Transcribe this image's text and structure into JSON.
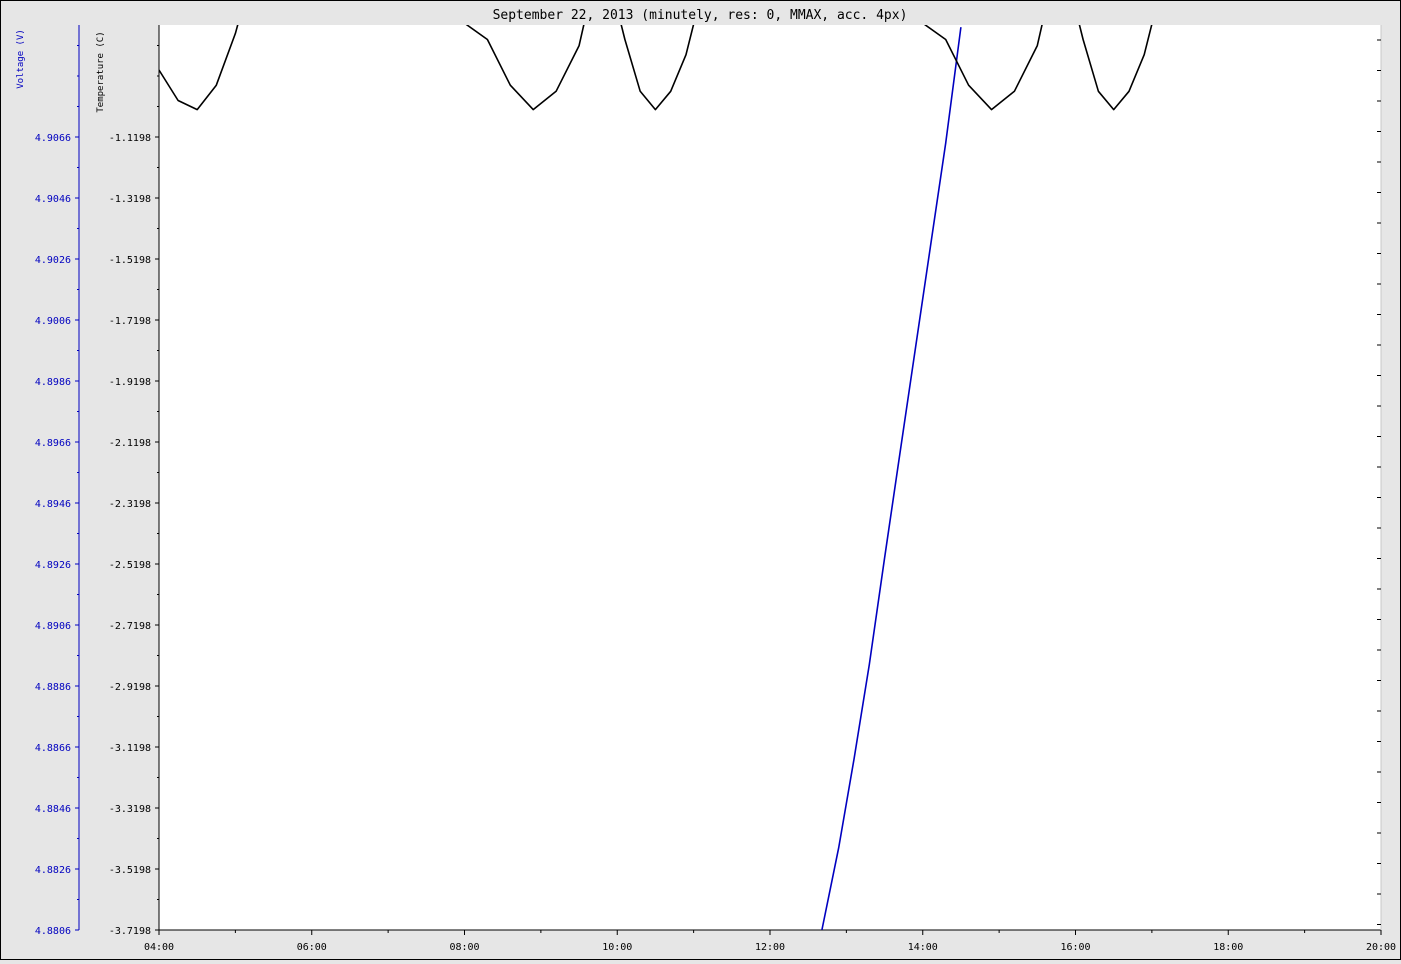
{
  "chart_data": {
    "type": "line",
    "title": "September 22, 2013 (minutely, res: 0, MMAX, acc. 4px)",
    "x_ticks": [
      "04:00",
      "06:00",
      "08:00",
      "10:00",
      "12:00",
      "14:00",
      "16:00",
      "18:00",
      "20:00"
    ],
    "xlim": [
      4,
      20
    ],
    "axes": {
      "voltage": {
        "label": "Voltage (V)",
        "color": "#0000c0",
        "ylim": [
          4.8806,
          4.9066
        ],
        "ticks": [
          "4.9066",
          "4.9046",
          "4.9026",
          "4.9006",
          "4.8986",
          "4.8966",
          "4.8946",
          "4.8926",
          "4.8906",
          "4.8886",
          "4.8866",
          "4.8846",
          "4.8826",
          "4.8806"
        ]
      },
      "temperature": {
        "label": "Temperature (C)",
        "color": "#000000",
        "ylim": [
          -3.7198,
          -1.1198
        ],
        "ticks": [
          "-1.1198",
          "-1.3198",
          "-1.5198",
          "-1.7198",
          "-1.9198",
          "-2.1198",
          "-2.3198",
          "-2.5198",
          "-2.7198",
          "-2.9198",
          "-3.1198",
          "-3.3198",
          "-3.5198",
          "-3.7198"
        ]
      }
    },
    "series": [
      {
        "axis": "voltage",
        "color": "#0000c0",
        "x": [
          12.68,
          12.9,
          13.1,
          13.3,
          13.5,
          13.7,
          13.9,
          14.1,
          14.3,
          14.5
        ],
        "y": [
          4.8806,
          4.8833,
          4.8862,
          4.8893,
          4.8928,
          4.8962,
          4.8996,
          4.903,
          4.9064,
          4.9102
        ]
      },
      {
        "axis": "temperature",
        "color": "#000000",
        "x": [
          4.0,
          4.25,
          4.5,
          4.75,
          5.0,
          5.25,
          5.5,
          8.3,
          8.6,
          8.9,
          9.2,
          9.5,
          9.7,
          9.85,
          10.1,
          10.3,
          10.5,
          10.7,
          10.9,
          11.2,
          11.5,
          14.3,
          14.6,
          14.9,
          15.2,
          15.5,
          15.7,
          15.85,
          16.1,
          16.3,
          16.5,
          16.7,
          16.9,
          17.2,
          17.5
        ],
        "y": [
          -0.9,
          -1.0,
          -1.03,
          -0.95,
          -0.78,
          -0.55,
          -0.3,
          -0.8,
          -0.95,
          -1.03,
          -0.97,
          -0.82,
          -0.6,
          -0.55,
          -0.8,
          -0.97,
          -1.03,
          -0.97,
          -0.85,
          -0.55,
          -0.3,
          -0.8,
          -0.95,
          -1.03,
          -0.97,
          -0.82,
          -0.6,
          -0.55,
          -0.8,
          -0.97,
          -1.03,
          -0.97,
          -0.85,
          -0.55,
          -0.3
        ]
      }
    ]
  }
}
